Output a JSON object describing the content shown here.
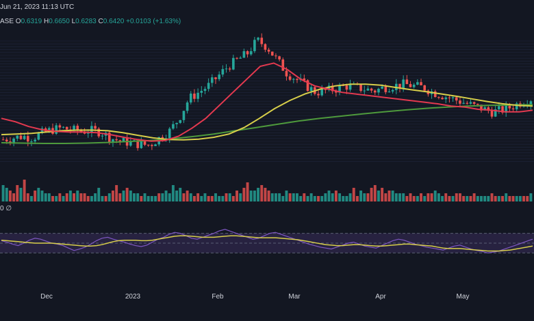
{
  "header": {
    "timestamp": "Jun 21, 2023 11:13 UTC",
    "symbol_fragment": "ASE",
    "ohlc": [
      {
        "label": "O",
        "value": "0.6319"
      },
      {
        "label": "H",
        "value": "0.6650"
      },
      {
        "label": "L",
        "value": "0.6283"
      },
      {
        "label": "C",
        "value": "0.6420"
      }
    ],
    "change": "+0.0103 (+1.63%)",
    "volume_label_fragment": "0 ∅"
  },
  "colors": {
    "background": "#131722",
    "up": "#26a69a",
    "down": "#ef5350",
    "ma_short": "#e4394f",
    "ma_mid": "#d8cf4a",
    "ma_long": "#4e9a3c",
    "rsi": "#7e57c2",
    "rsi_ma": "#d8cf4a"
  },
  "chart_data": {
    "type": "line",
    "x_axis_labels": [
      "Dec",
      "2023",
      "Feb",
      "Mar",
      "Apr",
      "May"
    ],
    "price_panel": {
      "ylim": [
        0.28,
        0.7
      ],
      "close_path": [
        0.355,
        0.36,
        0.365,
        0.36,
        0.375,
        0.385,
        0.39,
        0.385,
        0.38,
        0.383,
        0.378,
        0.36,
        0.35,
        0.345,
        0.34,
        0.338,
        0.36,
        0.38,
        0.42,
        0.48,
        0.5,
        0.52,
        0.55,
        0.58,
        0.6,
        0.62,
        0.66,
        0.64,
        0.6,
        0.56,
        0.54,
        0.52,
        0.5,
        0.505,
        0.51,
        0.52,
        0.515,
        0.51,
        0.505,
        0.515,
        0.52,
        0.525,
        0.52,
        0.515,
        0.5,
        0.49,
        0.48,
        0.47,
        0.46,
        0.45,
        0.44,
        0.445,
        0.455,
        0.47,
        0.48
      ],
      "ma_short": [
        0.42,
        0.41,
        0.395,
        0.385,
        0.38,
        0.378,
        0.378,
        0.376,
        0.37,
        0.362,
        0.355,
        0.35,
        0.352,
        0.365,
        0.39,
        0.42,
        0.46,
        0.5,
        0.54,
        0.58,
        0.59,
        0.57,
        0.54,
        0.52,
        0.51,
        0.5,
        0.495,
        0.49,
        0.485,
        0.48,
        0.475,
        0.47,
        0.465,
        0.458,
        0.455,
        0.448,
        0.445,
        0.44,
        0.44,
        0.445
      ],
      "ma_mid": [
        0.37,
        0.372,
        0.374,
        0.378,
        0.382,
        0.384,
        0.384,
        0.382,
        0.376,
        0.368,
        0.36,
        0.355,
        0.354,
        0.356,
        0.362,
        0.372,
        0.392,
        0.42,
        0.45,
        0.475,
        0.495,
        0.51,
        0.52,
        0.525,
        0.525,
        0.522,
        0.515,
        0.508,
        0.502,
        0.495,
        0.488,
        0.48,
        0.472,
        0.465,
        0.46,
        0.458
      ],
      "ma_long": [
        0.345,
        0.344,
        0.343,
        0.343,
        0.344,
        0.346,
        0.349,
        0.352,
        0.357,
        0.364,
        0.372,
        0.382,
        0.392,
        0.402,
        0.412,
        0.42,
        0.427,
        0.434,
        0.44,
        0.446,
        0.451,
        0.455,
        0.458,
        0.46,
        0.461,
        0.462
      ]
    },
    "volume_panel": {
      "values": [
        6,
        5,
        4,
        3,
        6,
        5,
        8,
        3,
        2,
        4,
        5,
        4,
        3,
        3,
        2,
        2,
        3,
        2,
        3,
        4,
        3,
        4,
        3,
        3,
        2,
        2,
        3,
        5,
        2,
        2,
        3,
        4,
        6,
        3,
        4,
        5,
        4,
        3,
        3,
        2,
        3,
        2,
        2,
        2,
        3,
        3,
        4,
        3,
        6,
        4,
        5,
        3,
        4,
        3,
        2,
        3,
        2,
        3,
        2,
        2,
        3,
        2,
        2,
        3,
        3,
        2,
        4,
        3,
        5,
        7,
        4,
        4,
        5,
        6,
        5,
        4,
        3,
        3,
        3,
        2,
        4,
        3,
        3,
        3,
        2,
        3,
        2,
        3,
        2,
        2,
        2,
        3,
        4,
        3,
        4,
        3,
        2,
        2,
        3,
        5,
        2,
        4,
        3,
        3,
        5,
        6,
        4,
        5,
        3,
        4,
        4,
        3,
        3,
        3,
        2,
        3,
        2,
        2,
        3,
        2,
        3,
        3,
        4,
        3,
        2,
        3,
        2,
        2,
        3,
        3,
        2,
        2,
        2,
        3,
        2,
        2,
        2,
        2,
        3,
        2,
        2,
        2,
        3,
        2,
        2,
        2,
        2,
        2,
        2,
        3
      ],
      "ylim": [
        0,
        10
      ]
    },
    "rsi_panel": {
      "ylim": [
        0,
        100
      ],
      "upper_band": 70,
      "lower_band": 30,
      "mid_line": 50,
      "rsi": [
        55,
        52,
        48,
        45,
        50,
        56,
        60,
        58,
        54,
        50,
        48,
        45,
        40,
        35,
        38,
        42,
        48,
        55,
        60,
        62,
        58,
        55,
        52,
        48,
        45,
        43,
        46,
        52,
        58,
        62,
        68,
        72,
        70,
        65,
        60,
        58,
        62,
        66,
        70,
        75,
        78,
        74,
        70,
        66,
        62,
        58,
        60,
        65,
        70,
        72,
        68,
        64,
        60,
        56,
        52,
        48,
        45,
        42,
        40,
        38,
        42,
        46,
        50,
        52,
        48,
        44,
        42,
        40,
        45,
        50,
        55,
        58,
        56,
        52,
        48,
        45,
        42,
        40,
        38,
        36,
        40,
        44,
        46,
        42,
        38,
        35,
        33,
        30,
        32,
        34,
        38,
        42,
        46,
        50,
        54,
        58
      ],
      "rsi_ma": [
        56,
        55,
        54,
        53,
        52,
        51,
        50,
        50,
        50,
        50,
        49,
        48,
        47,
        46,
        45,
        44,
        44,
        45,
        47,
        50,
        53,
        55,
        56,
        56,
        56,
        55,
        55,
        56,
        58,
        60,
        62,
        64,
        65,
        65,
        64,
        63,
        62,
        62,
        62,
        63,
        64,
        65,
        65,
        64,
        63,
        62,
        61,
        61,
        61,
        61,
        60,
        59,
        58,
        57,
        55,
        53,
        51,
        49,
        47,
        46,
        45,
        45,
        46,
        47,
        47,
        46,
        45,
        44,
        44,
        45,
        46,
        47,
        48,
        48,
        47,
        46,
        45,
        44,
        42,
        40,
        39,
        39,
        39,
        38,
        37,
        36,
        35,
        34,
        34,
        34,
        35,
        36,
        38,
        40,
        42,
        44
      ]
    }
  }
}
